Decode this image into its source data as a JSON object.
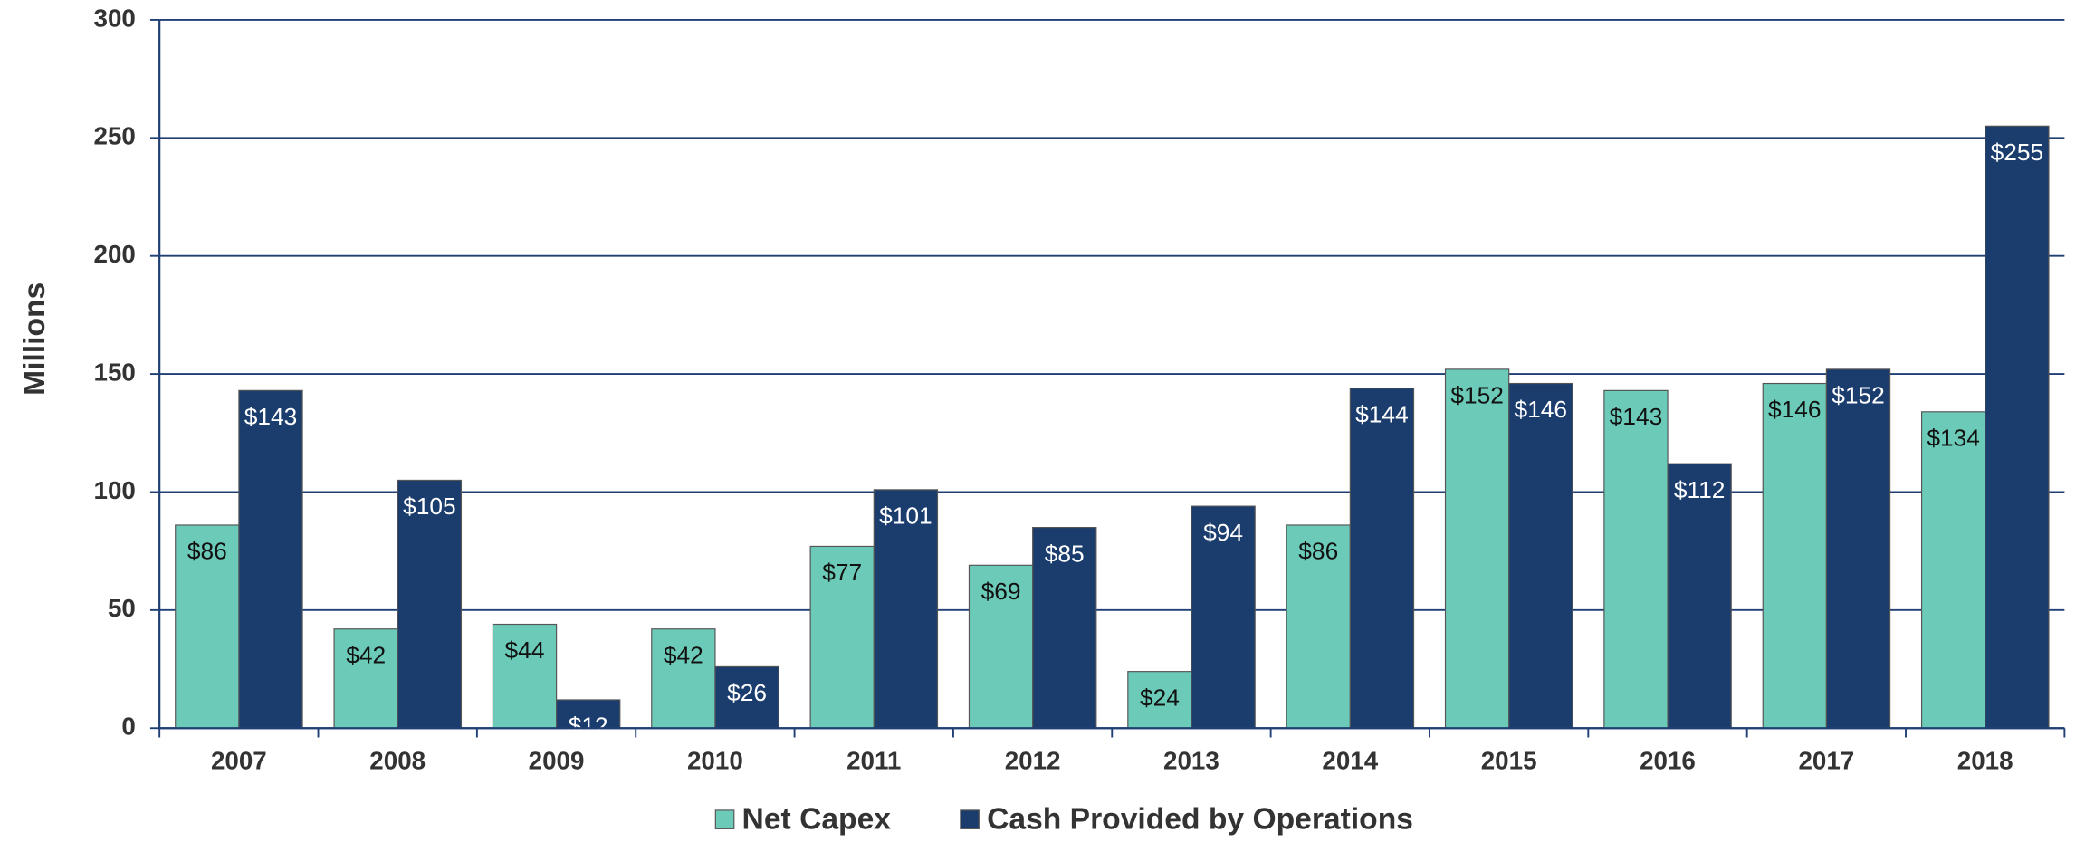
{
  "chart_data": {
    "type": "bar",
    "y_label": "Millions",
    "categories": [
      "2007",
      "2008",
      "2009",
      "2010",
      "2011",
      "2012",
      "2013",
      "2014",
      "2015",
      "2016",
      "2017",
      "2018"
    ],
    "series": [
      {
        "name": "Net Capex",
        "color": "#6ccbb8",
        "label_color": "#111111",
        "values": [
          86,
          42,
          44,
          42,
          77,
          69,
          24,
          86,
          152,
          143,
          146,
          134
        ],
        "value_labels": [
          "$86",
          "$42",
          "$44",
          "$42",
          "$77",
          "$69",
          "$24",
          "$86",
          "$152",
          "$143",
          "$146",
          "$134"
        ]
      },
      {
        "name": "Cash Provided by Operations",
        "color": "#1b3d6e",
        "label_color": "#ffffff",
        "values": [
          143,
          105,
          12,
          26,
          101,
          85,
          94,
          144,
          146,
          112,
          152,
          255
        ],
        "value_labels": [
          "$143",
          "$105",
          "$12",
          "$26",
          "$101",
          "$85",
          "$94",
          "$144",
          "$146",
          "$112",
          "$152",
          "$255"
        ]
      }
    ],
    "ylim": [
      0,
      300
    ],
    "yticks": [
      0,
      50,
      100,
      150,
      200,
      250,
      300
    ],
    "grid": true
  }
}
